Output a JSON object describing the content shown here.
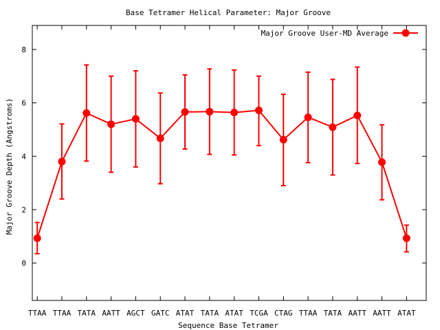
{
  "chart_data": {
    "type": "line",
    "title": "Base Tetramer Helical Parameter: Major Groove",
    "xlabel": "Sequence Base Tetramer",
    "ylabel": "Major Groove Depth (Angstroms)",
    "categories": [
      "TTAA",
      "TTAA",
      "TATA",
      "AATT",
      "AGCT",
      "GATC",
      "ATAT",
      "TATA",
      "ATAT",
      "TCGA",
      "CTAG",
      "TTAA",
      "TATA",
      "AATT",
      "AATT",
      "ATAT"
    ],
    "ylim": [
      -1.4,
      8.9
    ],
    "yticks": [
      0,
      2,
      4,
      6,
      8
    ],
    "grid": false,
    "legend_position": "top-right",
    "series": [
      {
        "name": "Major Groove User-MD Average",
        "color": "#ff0000",
        "values": [
          0.93,
          3.8,
          5.62,
          5.2,
          5.4,
          4.67,
          5.66,
          5.67,
          5.64,
          5.72,
          4.62,
          5.46,
          5.09,
          5.53,
          3.78,
          0.93
        ],
        "err_low": [
          0.35,
          2.4,
          3.82,
          3.4,
          3.6,
          2.97,
          4.27,
          4.07,
          4.05,
          4.4,
          2.9,
          3.76,
          3.3,
          3.73,
          2.37,
          0.42
        ],
        "err_high": [
          1.52,
          5.21,
          7.42,
          7.0,
          7.2,
          6.37,
          7.05,
          7.27,
          7.23,
          7.0,
          6.32,
          7.15,
          6.88,
          7.34,
          5.18,
          1.42
        ]
      }
    ]
  }
}
